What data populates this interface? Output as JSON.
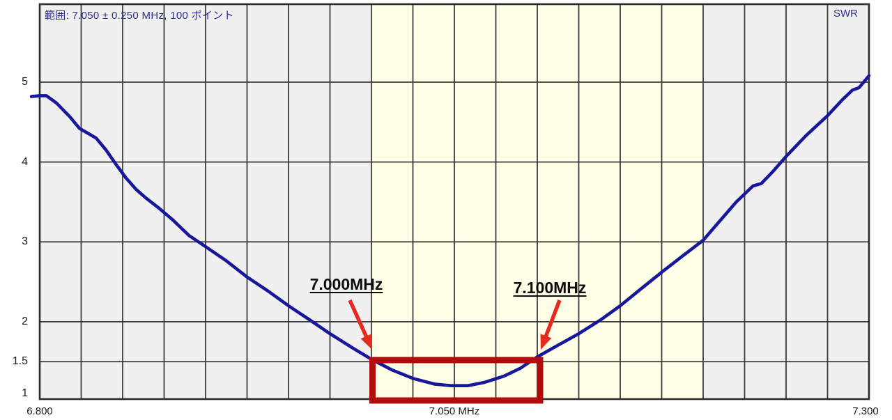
{
  "header": {
    "range_label": "範囲: 7.050 ± 0.250 MHz, 100 ポイント",
    "y_axis_label": "SWR"
  },
  "colors": {
    "plot_background": "#F0F0F1",
    "band_highlight": "#FFFFE7",
    "gridline": "#3B3B3B",
    "border": "#2B2B2B",
    "curve": "#17179B",
    "arrow_red": "#E52A1E",
    "box_red": "#B20D0D",
    "header_text": "#2D2D90"
  },
  "chart_data": {
    "type": "line",
    "title": "SWR sweep 7.050 ± 0.250 MHz, 100 points",
    "xlabel": "MHz",
    "ylabel": "SWR",
    "xlim": [
      6.8,
      7.3
    ],
    "ylim": [
      1,
      6
    ],
    "grid": {
      "x_step_mhz": 0.025,
      "y_lines": [
        1.5,
        2,
        3,
        4,
        5
      ]
    },
    "x_ticks": [
      {
        "label": "6.800",
        "freq": 6.8
      },
      {
        "label": "7.050 MHz",
        "freq": 7.05
      },
      {
        "label": "7.300",
        "freq": 7.3
      }
    ],
    "y_ticks": [
      {
        "label": "5",
        "value": 5
      },
      {
        "label": "4",
        "value": 4
      },
      {
        "label": "3",
        "value": 3
      },
      {
        "label": "2",
        "value": 2
      },
      {
        "label": "1.5",
        "value": 1.5
      },
      {
        "label": "1",
        "value": 1
      }
    ],
    "band_highlight": {
      "from": 7.0,
      "to": 7.2
    },
    "highlight_box": {
      "from": 7.0,
      "to": 7.1,
      "swr_min": 1.2,
      "swr_at_edges": 1.55
    },
    "series": [
      {
        "name": "SWR",
        "points": [
          [
            6.795,
            4.82
          ],
          [
            6.8,
            4.83
          ],
          [
            6.804,
            4.83
          ],
          [
            6.81,
            4.74
          ],
          [
            6.818,
            4.57
          ],
          [
            6.824,
            4.42
          ],
          [
            6.829,
            4.36
          ],
          [
            6.834,
            4.3
          ],
          [
            6.84,
            4.15
          ],
          [
            6.846,
            3.97
          ],
          [
            6.852,
            3.8
          ],
          [
            6.858,
            3.66
          ],
          [
            6.864,
            3.55
          ],
          [
            6.872,
            3.42
          ],
          [
            6.88,
            3.28
          ],
          [
            6.89,
            3.08
          ],
          [
            6.9,
            2.94
          ],
          [
            6.912,
            2.77
          ],
          [
            6.925,
            2.56
          ],
          [
            6.938,
            2.38
          ],
          [
            6.95,
            2.2
          ],
          [
            6.963,
            2.02
          ],
          [
            6.975,
            1.85
          ],
          [
            6.988,
            1.68
          ],
          [
            7.0,
            1.53
          ],
          [
            7.012,
            1.4
          ],
          [
            7.025,
            1.29
          ],
          [
            7.038,
            1.22
          ],
          [
            7.048,
            1.2
          ],
          [
            7.058,
            1.2
          ],
          [
            7.068,
            1.24
          ],
          [
            7.08,
            1.32
          ],
          [
            7.09,
            1.42
          ],
          [
            7.1,
            1.56
          ],
          [
            7.112,
            1.7
          ],
          [
            7.125,
            1.85
          ],
          [
            7.138,
            2.02
          ],
          [
            7.15,
            2.2
          ],
          [
            7.163,
            2.42
          ],
          [
            7.175,
            2.62
          ],
          [
            7.188,
            2.83
          ],
          [
            7.2,
            3.02
          ],
          [
            7.21,
            3.26
          ],
          [
            7.22,
            3.5
          ],
          [
            7.225,
            3.6
          ],
          [
            7.23,
            3.7
          ],
          [
            7.235,
            3.73
          ],
          [
            7.242,
            3.88
          ],
          [
            7.25,
            4.07
          ],
          [
            7.262,
            4.33
          ],
          [
            7.275,
            4.58
          ],
          [
            7.284,
            4.78
          ],
          [
            7.29,
            4.9
          ],
          [
            7.294,
            4.93
          ],
          [
            7.3,
            5.08
          ]
        ]
      }
    ],
    "annotations": [
      {
        "label": "7.000MHz",
        "freq": 7.0
      },
      {
        "label": "7.100MHz",
        "freq": 7.1
      }
    ]
  }
}
